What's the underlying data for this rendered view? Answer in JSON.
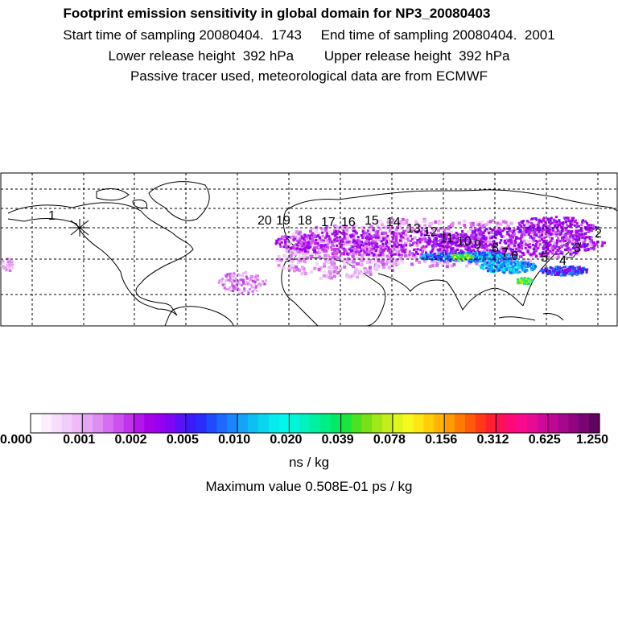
{
  "header": {
    "title": "Footprint emission sensitivity in global domain for NP3_20080403",
    "sampling_line": "Start time of sampling 20080404.  1743     End time of sampling 20080404.  2001",
    "release_line": "Lower release height  392 hPa        Upper release height  392 hPa",
    "tracer_line": "Passive tracer used, meteorological data are from ECMWF"
  },
  "chart_data": {
    "type": "heatmap",
    "title": "Footprint emission sensitivity in global domain for NP3_20080403",
    "map_projection": "global lat-lon",
    "plume_markers": [
      {
        "label": "1"
      },
      {
        "label": "2"
      },
      {
        "label": "3"
      },
      {
        "label": "4"
      },
      {
        "label": "5"
      },
      {
        "label": "6"
      },
      {
        "label": "7"
      },
      {
        "label": "8"
      },
      {
        "label": "9"
      },
      {
        "label": "10"
      },
      {
        "label": "11"
      },
      {
        "label": "12"
      },
      {
        "label": "13"
      },
      {
        "label": "14"
      },
      {
        "label": "15"
      },
      {
        "label": "16"
      },
      {
        "label": "17"
      },
      {
        "label": "18"
      },
      {
        "label": "19"
      },
      {
        "label": "20"
      }
    ],
    "colorbar": {
      "tick_labels": [
        "0.000",
        "0.001",
        "0.002",
        "0.005",
        "0.010",
        "0.020",
        "0.039",
        "0.078",
        "0.156",
        "0.312",
        "0.625",
        "1.250"
      ],
      "unit": "ns / kg",
      "colors": [
        "#ffffff",
        "#fbeefd",
        "#f7dffb",
        "#f2cdf9",
        "#edbaf7",
        "#e7a6f5",
        "#df8cf2",
        "#d56ef0",
        "#cb50ee",
        "#c033ec",
        "#b515ea",
        "#a700ea",
        "#9600f0",
        "#7d06f5",
        "#5b10f8",
        "#3a1cfb",
        "#2a2cfd",
        "#1f4afe",
        "#1d6afe",
        "#1b85fb",
        "#16a2f6",
        "#0fbef2",
        "#0ad6ef",
        "#05ebee",
        "#00f7eb",
        "#00f5d8",
        "#00f2be",
        "#00f0a2",
        "#00ee86",
        "#00ea63",
        "#18e63c",
        "#4ae222",
        "#78e019",
        "#a0e819",
        "#c2ef19",
        "#dff51c",
        "#f7f81e",
        "#fee514",
        "#ffce0b",
        "#ffb405",
        "#ff9a02",
        "#ff7a05",
        "#ff5a0c",
        "#ff3a18",
        "#ff1f30",
        "#ff0f58",
        "#ff0a78",
        "#f80a90",
        "#e60a96",
        "#d1099a",
        "#bd0894",
        "#a6078c",
        "#8f0680",
        "#780573",
        "#5f045f"
      ]
    },
    "max_value_text": "Maximum value  0.508E-01 ps / kg"
  }
}
